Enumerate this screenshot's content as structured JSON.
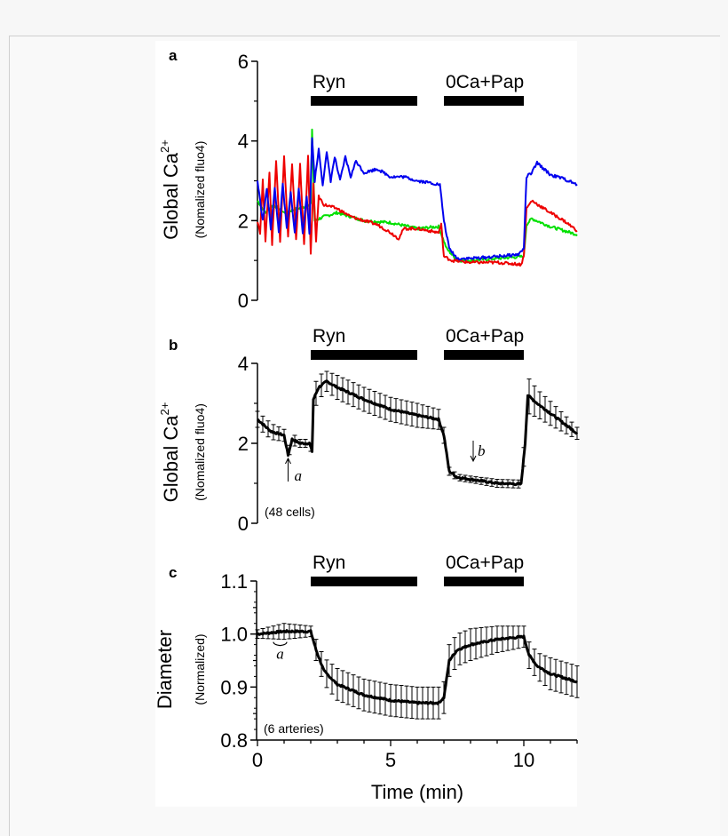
{
  "chart_data": [
    {
      "type": "line",
      "panel_label": "a",
      "ylabel": "Global Ca",
      "ylabel_sup": "2+",
      "ylabel_sub": "(Nomalized fluo4)",
      "xlim": [
        0,
        12
      ],
      "ylim": [
        0,
        6
      ],
      "yticks": [
        "0",
        "2",
        "4",
        "6"
      ],
      "treatments": [
        {
          "label": "Ryn",
          "start": 2,
          "end": 6
        },
        {
          "label": "0Ca+Pap",
          "start": 7,
          "end": 10
        }
      ],
      "series": [
        {
          "color": "#00e000",
          "points": [
            [
              0,
              2.5
            ],
            [
              0.3,
              2.2
            ],
            [
              0.6,
              2.4
            ],
            [
              1,
              2.2
            ],
            [
              1.5,
              2.3
            ],
            [
              2.0,
              2.4
            ],
            [
              2.05,
              4.3
            ],
            [
              2.15,
              2.0
            ],
            [
              2.5,
              2.1
            ],
            [
              3,
              2.2
            ],
            [
              3.5,
              2.1
            ],
            [
              4,
              2.0
            ],
            [
              5,
              1.95
            ],
            [
              6,
              1.8
            ],
            [
              6.8,
              1.85
            ],
            [
              7.1,
              1.3
            ],
            [
              7.5,
              1.0
            ],
            [
              8,
              1.0
            ],
            [
              9,
              1.05
            ],
            [
              10,
              1.1
            ],
            [
              10.1,
              1.9
            ],
            [
              10.3,
              2.05
            ],
            [
              11,
              1.85
            ],
            [
              12,
              1.65
            ]
          ]
        },
        {
          "color": "#ee0000",
          "points": [
            [
              0,
              2.0
            ],
            [
              0.1,
              1.7
            ],
            [
              0.2,
              3.0
            ],
            [
              0.3,
              1.5
            ],
            [
              0.45,
              3.2
            ],
            [
              0.55,
              1.4
            ],
            [
              0.7,
              3.5
            ],
            [
              0.85,
              1.5
            ],
            [
              1.0,
              3.6
            ],
            [
              1.15,
              1.6
            ],
            [
              1.3,
              3.4
            ],
            [
              1.45,
              1.5
            ],
            [
              1.6,
              3.4
            ],
            [
              1.75,
              1.4
            ],
            [
              1.9,
              3.6
            ],
            [
              2.0,
              1.2
            ],
            [
              2.1,
              2.9
            ],
            [
              2.2,
              1.5
            ],
            [
              2.3,
              2.6
            ],
            [
              2.5,
              2.4
            ],
            [
              3,
              2.3
            ],
            [
              3.5,
              2.1
            ],
            [
              4,
              2.0
            ],
            [
              4.5,
              1.9
            ],
            [
              5,
              1.7
            ],
            [
              5.3,
              1.55
            ],
            [
              5.5,
              1.8
            ],
            [
              6,
              1.8
            ],
            [
              6.8,
              1.7
            ],
            [
              6.9,
              1.9
            ],
            [
              7,
              1.1
            ],
            [
              7.3,
              1.0
            ],
            [
              8,
              0.95
            ],
            [
              9,
              0.95
            ],
            [
              9.9,
              0.9
            ],
            [
              10,
              1.1
            ],
            [
              10.1,
              2.3
            ],
            [
              10.3,
              2.5
            ],
            [
              11,
              2.2
            ],
            [
              11.5,
              2.0
            ],
            [
              12,
              1.75
            ]
          ]
        },
        {
          "color": "#0000ee",
          "points": [
            [
              0,
              3.0
            ],
            [
              0.2,
              2.0
            ],
            [
              0.35,
              2.8
            ],
            [
              0.5,
              1.8
            ],
            [
              0.65,
              2.8
            ],
            [
              0.8,
              1.7
            ],
            [
              0.95,
              2.9
            ],
            [
              1.1,
              1.8
            ],
            [
              1.25,
              2.7
            ],
            [
              1.4,
              1.7
            ],
            [
              1.55,
              2.8
            ],
            [
              1.7,
              1.7
            ],
            [
              1.85,
              2.6
            ],
            [
              1.95,
              1.7
            ],
            [
              2.05,
              4.1
            ],
            [
              2.15,
              3.0
            ],
            [
              2.3,
              3.8
            ],
            [
              2.45,
              2.9
            ],
            [
              2.6,
              3.7
            ],
            [
              2.75,
              3.0
            ],
            [
              2.9,
              3.6
            ],
            [
              3.1,
              3.0
            ],
            [
              3.3,
              3.6
            ],
            [
              3.5,
              3.1
            ],
            [
              3.7,
              3.5
            ],
            [
              4,
              3.2
            ],
            [
              4.5,
              3.3
            ],
            [
              5,
              3.1
            ],
            [
              5.5,
              3.1
            ],
            [
              6,
              3.0
            ],
            [
              6.5,
              2.95
            ],
            [
              6.85,
              2.9
            ],
            [
              7,
              2.0
            ],
            [
              7.2,
              1.3
            ],
            [
              7.5,
              1.05
            ],
            [
              8,
              1.05
            ],
            [
              9,
              1.1
            ],
            [
              9.8,
              1.15
            ],
            [
              10,
              1.3
            ],
            [
              10.1,
              3.1
            ],
            [
              10.3,
              3.2
            ],
            [
              10.5,
              3.45
            ],
            [
              11,
              3.15
            ],
            [
              11.5,
              3.05
            ],
            [
              12,
              2.9
            ]
          ]
        }
      ]
    },
    {
      "type": "line",
      "panel_label": "b",
      "ylabel": "Global Ca",
      "ylabel_sup": "2+",
      "ylabel_sub": "(Nomalized fluo4)",
      "xlim": [
        0,
        12
      ],
      "ylim": [
        0,
        4
      ],
      "yticks": [
        "0",
        "2",
        "4"
      ],
      "note": "(48 cells)",
      "annotations": [
        {
          "label": "a",
          "x": 1.15,
          "direction": "up"
        },
        {
          "label": "b",
          "x": 8.1,
          "direction": "down"
        }
      ],
      "treatments": [
        {
          "label": "Ryn",
          "start": 2,
          "end": 6
        },
        {
          "label": "0Ca+Pap",
          "start": 7,
          "end": 10
        }
      ],
      "series": [
        {
          "color": "#000000",
          "points": [
            [
              0,
              2.6,
              0.2
            ],
            [
              0.5,
              2.3,
              0.2
            ],
            [
              1,
              2.2,
              0.15
            ],
            [
              1.15,
              1.7,
              0.1
            ],
            [
              1.3,
              2.1,
              0.15
            ],
            [
              1.6,
              2.0,
              0.1
            ],
            [
              1.95,
              2.0,
              0.1
            ],
            [
              2.05,
              1.8,
              0.1
            ],
            [
              2.1,
              3.1,
              0.3
            ],
            [
              2.3,
              3.4,
              0.3
            ],
            [
              2.6,
              3.55,
              0.25
            ],
            [
              3,
              3.4,
              0.3
            ],
            [
              4,
              3.1,
              0.3
            ],
            [
              5,
              2.85,
              0.3
            ],
            [
              6,
              2.7,
              0.3
            ],
            [
              6.8,
              2.6,
              0.25
            ],
            [
              7,
              2.2,
              0.2
            ],
            [
              7.2,
              1.3,
              0.1
            ],
            [
              7.5,
              1.15,
              0.08
            ],
            [
              8,
              1.1,
              0.08
            ],
            [
              9,
              1.0,
              0.1
            ],
            [
              9.9,
              0.98,
              0.1
            ],
            [
              10.05,
              2.0,
              0.3
            ],
            [
              10.15,
              3.2,
              0.45
            ],
            [
              10.5,
              3.0,
              0.35
            ],
            [
              11,
              2.75,
              0.3
            ],
            [
              12,
              2.25,
              0.15
            ]
          ]
        }
      ]
    },
    {
      "type": "line",
      "panel_label": "c",
      "ylabel": "Diameter",
      "ylabel_sub": "(Normalized)",
      "xlabel": "Time (min)",
      "xlim": [
        0,
        12
      ],
      "ylim": [
        0.8,
        1.1
      ],
      "yticks": [
        "0.8",
        "0.9",
        "1.0",
        "1.1"
      ],
      "xticks": [
        "0",
        "5",
        "10"
      ],
      "note": "(6 arteries)",
      "annotations": [
        {
          "label": "a",
          "x_start": 0.6,
          "x_end": 1.1,
          "direction": "bracket"
        }
      ],
      "treatments": [
        {
          "label": "Ryn",
          "start": 2,
          "end": 6
        },
        {
          "label": "0Ca+Pap",
          "start": 7,
          "end": 10
        }
      ],
      "series": [
        {
          "color": "#000000",
          "points": [
            [
              0,
              1.0,
              0.008
            ],
            [
              1,
              1.005,
              0.015
            ],
            [
              2,
              1.005,
              0.01
            ],
            [
              2.2,
              0.97,
              0.02
            ],
            [
              2.5,
              0.93,
              0.025
            ],
            [
              3,
              0.905,
              0.03
            ],
            [
              4,
              0.885,
              0.03
            ],
            [
              5,
              0.875,
              0.03
            ],
            [
              6,
              0.87,
              0.03
            ],
            [
              6.8,
              0.87,
              0.03
            ],
            [
              7,
              0.88,
              0.03
            ],
            [
              7.2,
              0.95,
              0.03
            ],
            [
              7.5,
              0.97,
              0.03
            ],
            [
              8,
              0.98,
              0.03
            ],
            [
              9,
              0.99,
              0.025
            ],
            [
              10,
              0.995,
              0.02
            ],
            [
              10.2,
              0.96,
              0.025
            ],
            [
              10.5,
              0.94,
              0.025
            ],
            [
              11,
              0.925,
              0.03
            ],
            [
              12,
              0.91,
              0.03
            ]
          ]
        }
      ]
    }
  ]
}
